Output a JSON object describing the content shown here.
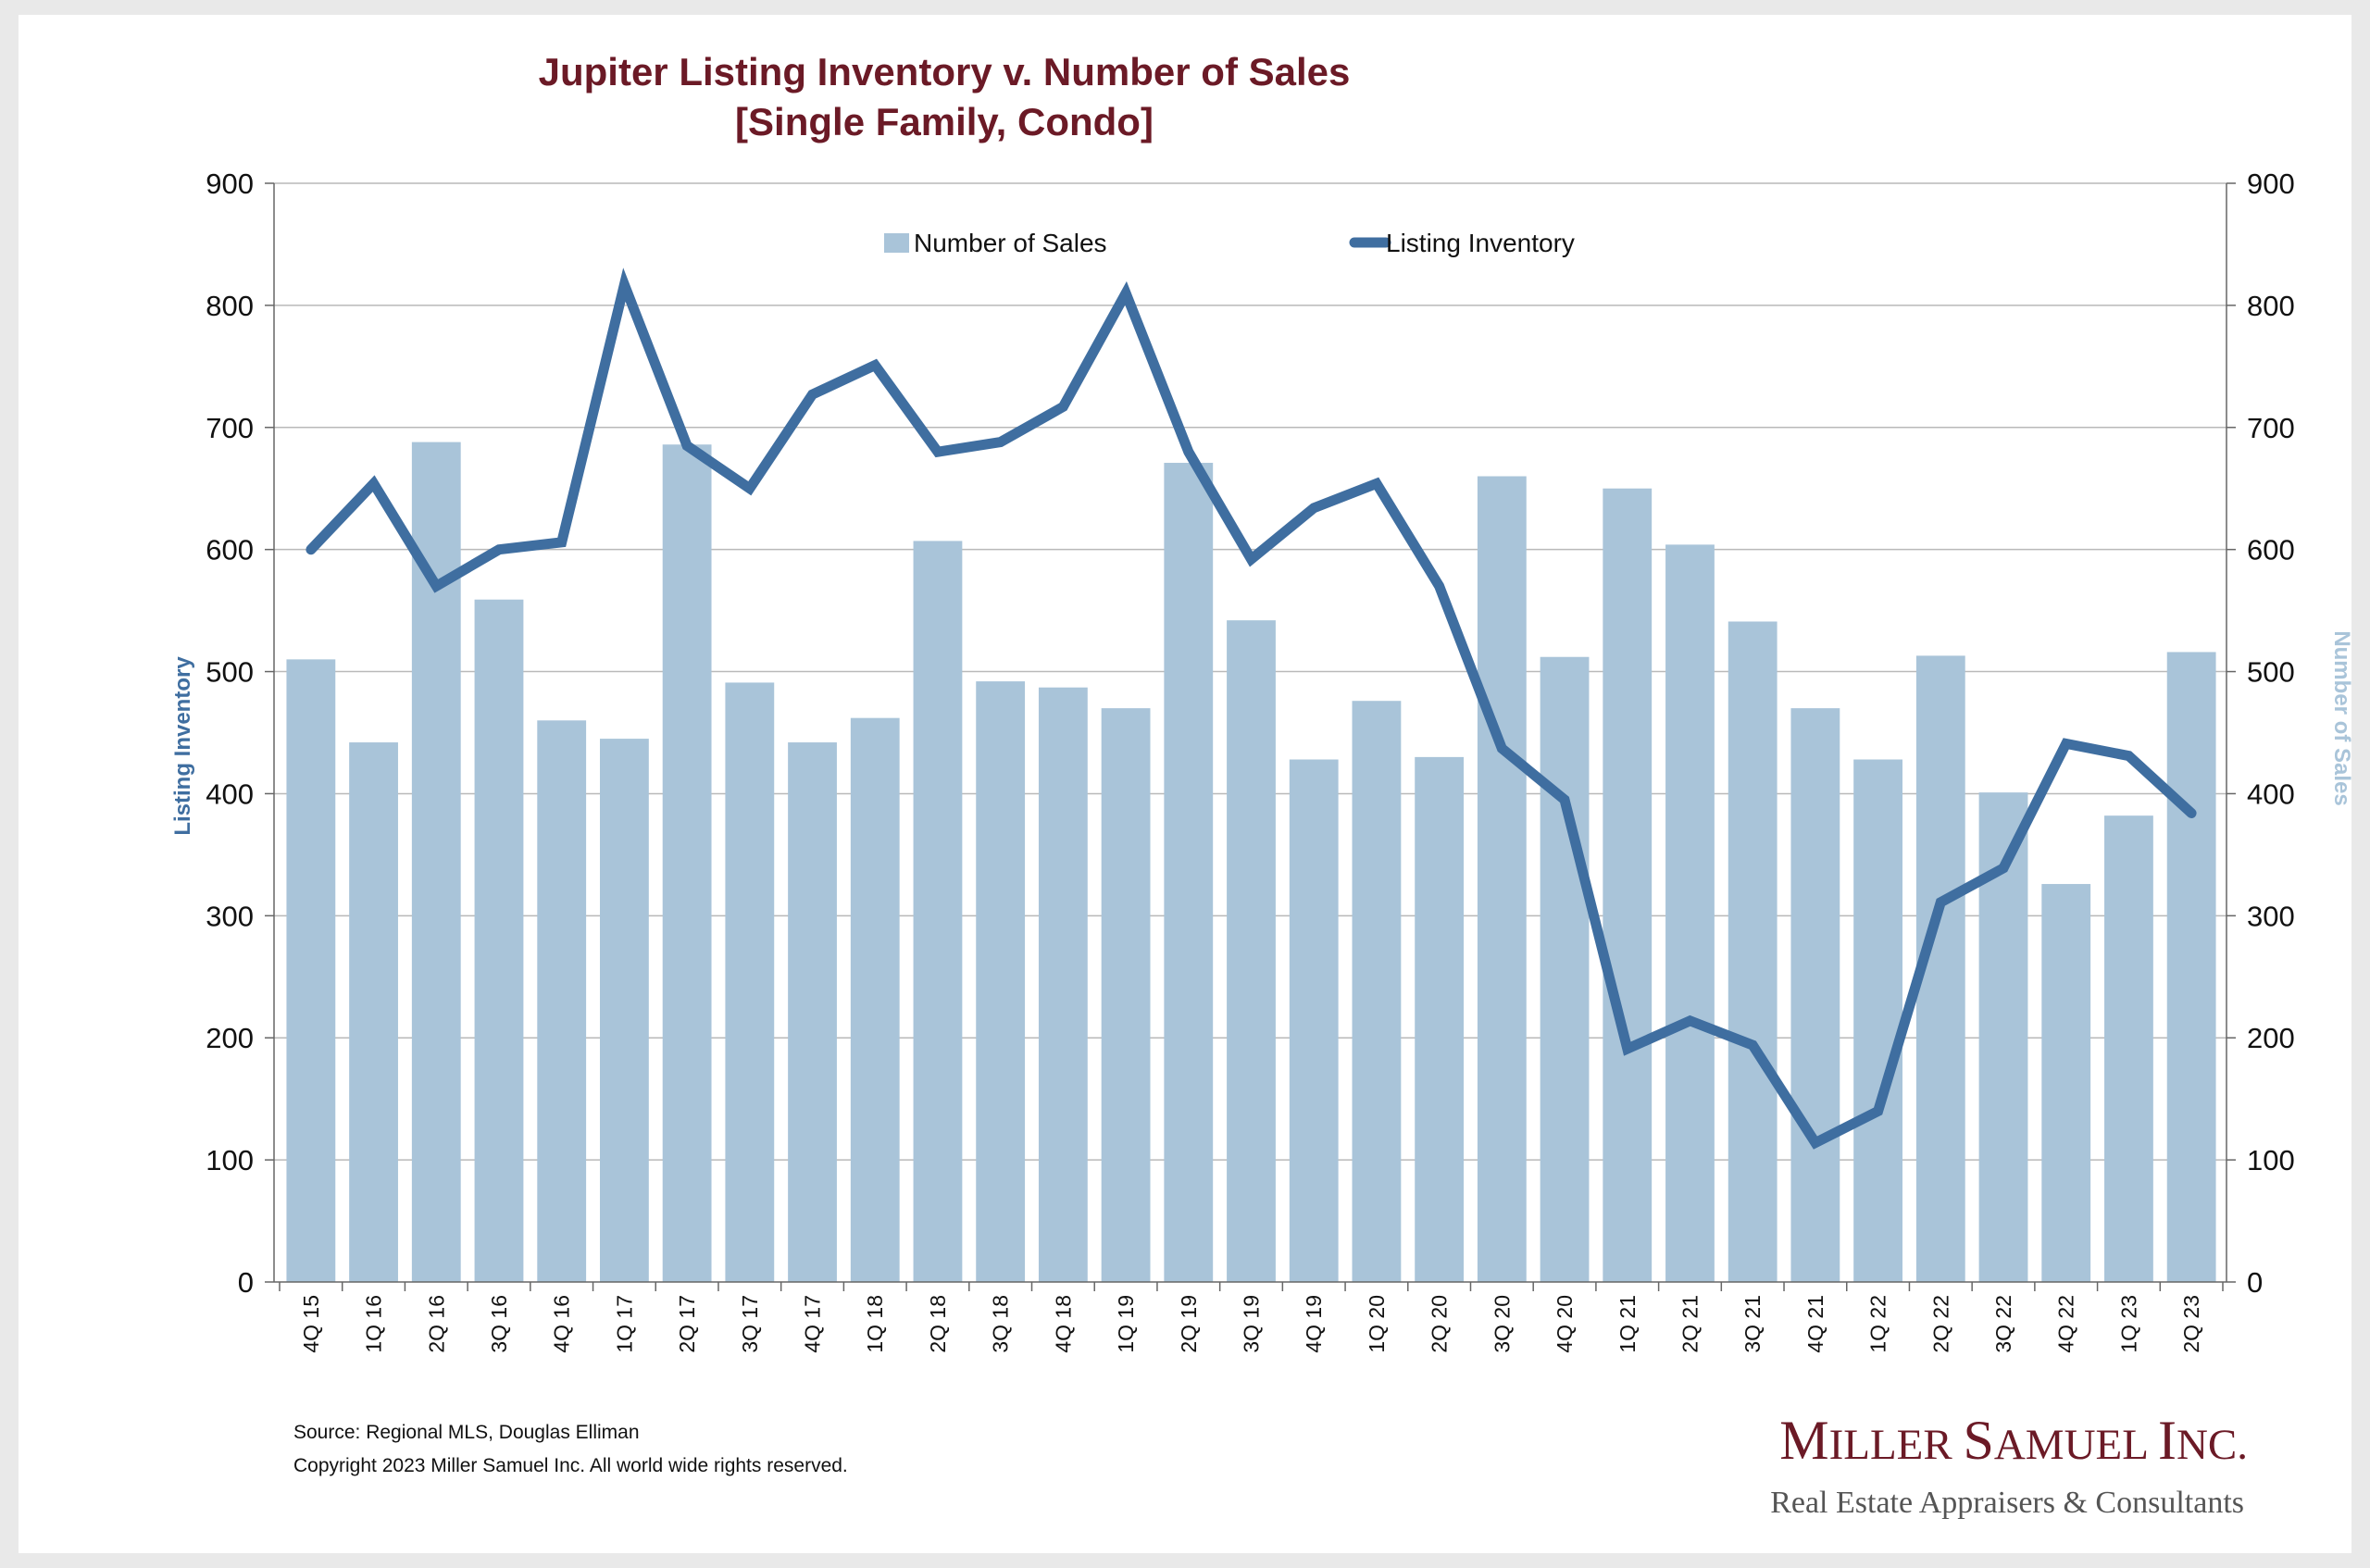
{
  "chart_data": {
    "type": "bar",
    "title": [
      "Jupiter Listing Inventory v. Number of Sales",
      "[Single Family, Condo]"
    ],
    "y_left_label": "Listing Inventory",
    "y_right_label": "Number of Sales",
    "ylim": [
      0,
      900
    ],
    "ytick_step": 100,
    "y_right_lim": [
      0,
      900
    ],
    "grid": true,
    "legend_position": "top-center",
    "categories": [
      "4Q 15",
      "1Q 16",
      "2Q 16",
      "3Q 16",
      "4Q 16",
      "1Q 17",
      "2Q 17",
      "3Q 17",
      "4Q 17",
      "1Q 18",
      "2Q 18",
      "3Q 18",
      "4Q 18",
      "1Q 19",
      "2Q 19",
      "3Q 19",
      "4Q 19",
      "1Q 20",
      "2Q 20",
      "3Q 20",
      "4Q 20",
      "1Q 21",
      "2Q 21",
      "3Q 21",
      "4Q 21",
      "1Q 22",
      "2Q 22",
      "3Q 22",
      "4Q 22",
      "1Q 23",
      "2Q 23"
    ],
    "series": [
      {
        "name": "Number of Sales",
        "kind": "bar",
        "axis": "right",
        "color": "#a9c4d9",
        "values": [
          510,
          442,
          688,
          559,
          460,
          445,
          686,
          491,
          442,
          462,
          607,
          492,
          487,
          470,
          671,
          542,
          428,
          476,
          430,
          660,
          512,
          650,
          604,
          541,
          470,
          428,
          513,
          401,
          326,
          382,
          516
        ]
      },
      {
        "name": "Listing Inventory",
        "kind": "line",
        "axis": "left",
        "color": "#3f6ea0",
        "values": [
          600,
          654,
          570,
          600,
          606,
          817,
          685,
          650,
          727,
          751,
          680,
          688,
          717,
          810,
          680,
          592,
          634,
          654,
          570,
          437,
          395,
          191,
          214,
          194,
          114,
          140,
          311,
          339,
          441,
          431,
          384
        ]
      }
    ]
  },
  "source_note": "Source: Regional MLS, Douglas Elliman",
  "copyright_note": "Copyright 2023 Miller Samuel Inc.  All world wide rights reserved.",
  "brand": {
    "name_parts": [
      "M",
      "ILLER ",
      "S",
      "AMUEL ",
      "I",
      "NC."
    ],
    "tagline": "Real Estate Appraisers & Consultants"
  }
}
